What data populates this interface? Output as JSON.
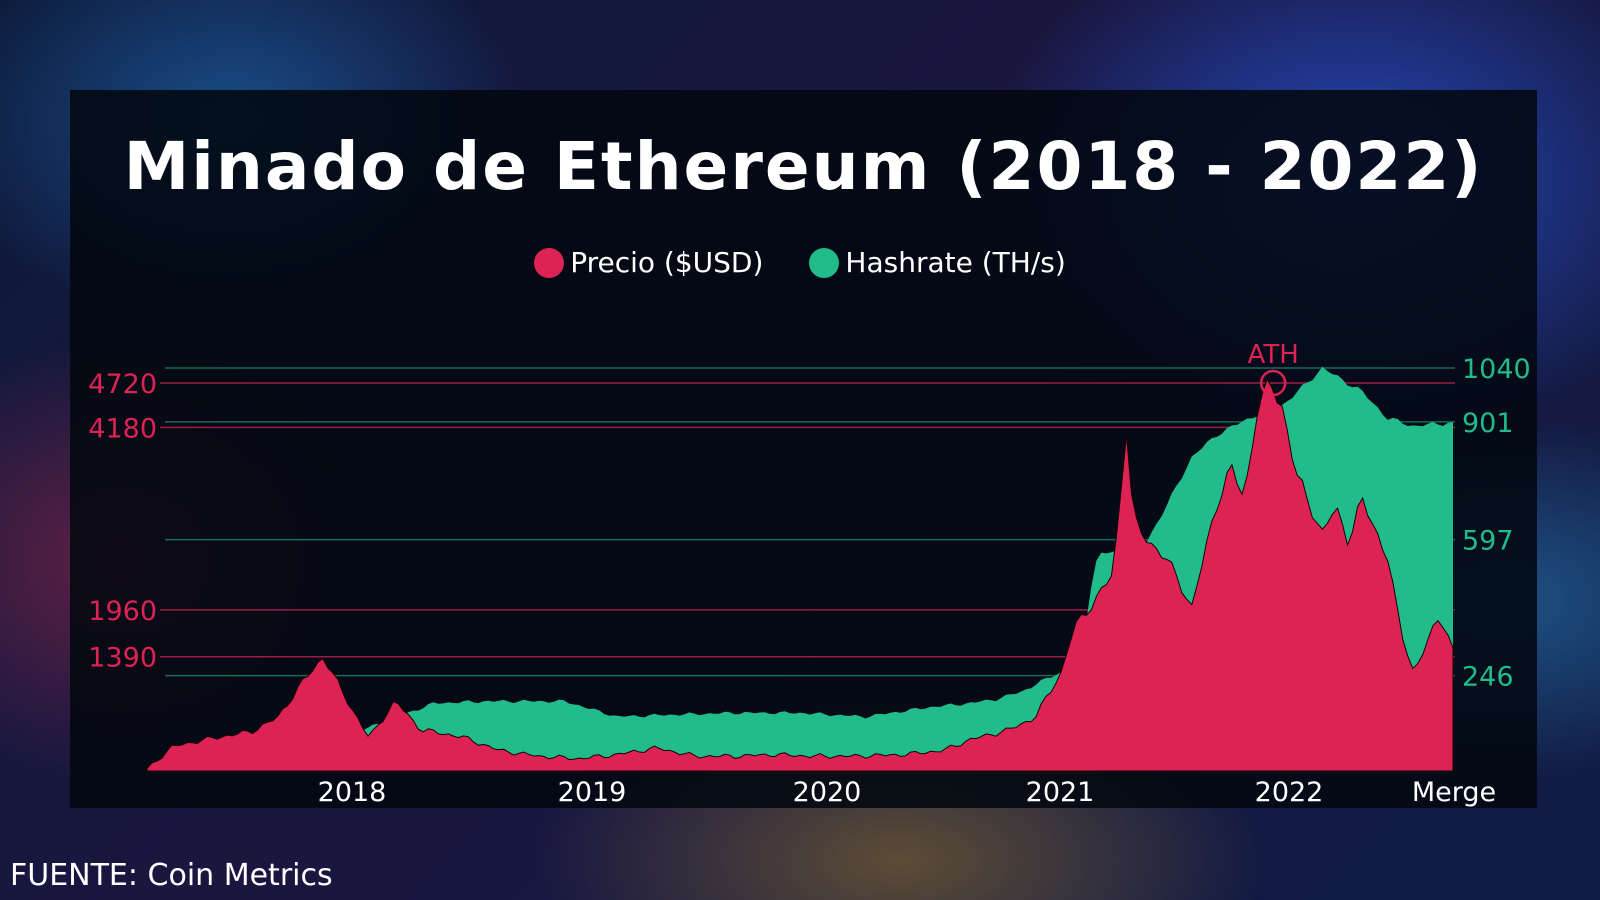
{
  "colors": {
    "price": "#dc2354",
    "hashrate": "#22bb8a"
  },
  "title": "Minado de Ethereum (2018 - 2022)",
  "legend": {
    "price_label": "Precio ($USD)",
    "hashrate_label": "Hashrate (TH/s)"
  },
  "source": "FUENTE: Coin Metrics",
  "chart_data": {
    "type": "area",
    "title": "Minado de Ethereum (2018 - 2022)",
    "x_ticks": [
      "2018",
      "2019",
      "2020",
      "2021",
      "2022",
      "Merge"
    ],
    "annotation": "ATH",
    "y_left": {
      "label": "Precio ($USD)",
      "ticks": [
        1390,
        1960,
        4180,
        4720
      ],
      "range": [
        0,
        5200
      ]
    },
    "y_right": {
      "label": "Hashrate (TH/s)",
      "ticks": [
        246,
        597,
        901,
        1040
      ],
      "range": [
        0,
        1040
      ]
    },
    "series": [
      {
        "name": "Hashrate (TH/s)",
        "axis": "right",
        "x": [
          0,
          0.04,
          0.1,
          0.12,
          0.16,
          0.22,
          0.26,
          0.32,
          0.36,
          0.4,
          0.45,
          0.5,
          0.55,
          0.6,
          0.63,
          0.65,
          0.67,
          0.69,
          0.7,
          0.71,
          0.72,
          0.725,
          0.73,
          0.75,
          0.76,
          0.78,
          0.8,
          0.82,
          0.85,
          0.87,
          0.88,
          0.9,
          0.93,
          0.95,
          0.97,
          1.0
        ],
        "values": [
          5,
          25,
          60,
          80,
          100,
          175,
          180,
          180,
          140,
          145,
          150,
          150,
          140,
          165,
          175,
          185,
          205,
          240,
          255,
          280,
          400,
          530,
          560,
          570,
          560,
          680,
          810,
          870,
          920,
          945,
          975,
          1040,
          980,
          910,
          890,
          900
        ]
      },
      {
        "name": "Precio ($USD)",
        "axis": "left",
        "x": [
          0,
          0.02,
          0.05,
          0.08,
          0.1,
          0.12,
          0.135,
          0.15,
          0.17,
          0.19,
          0.21,
          0.24,
          0.27,
          0.3,
          0.33,
          0.36,
          0.39,
          0.42,
          0.45,
          0.48,
          0.51,
          0.54,
          0.58,
          0.61,
          0.63,
          0.66,
          0.68,
          0.7,
          0.71,
          0.72,
          0.74,
          0.75,
          0.755,
          0.76,
          0.78,
          0.8,
          0.82,
          0.83,
          0.84,
          0.85,
          0.86,
          0.87,
          0.88,
          0.9,
          0.91,
          0.92,
          0.93,
          0.95,
          0.96,
          0.97,
          0.98,
          0.99,
          1.0
        ],
        "values": [
          30,
          300,
          400,
          480,
          650,
          1100,
          1390,
          950,
          400,
          850,
          500,
          420,
          250,
          180,
          150,
          200,
          280,
          180,
          180,
          200,
          180,
          180,
          200,
          250,
          380,
          500,
          650,
          1200,
          1750,
          1950,
          2400,
          4200,
          3100,
          2900,
          2600,
          2000,
          3300,
          3700,
          3300,
          4400,
          4720,
          4400,
          3600,
          2900,
          3200,
          2800,
          3300,
          2600,
          1700,
          1200,
          1550,
          1900,
          1500
        ]
      }
    ]
  }
}
